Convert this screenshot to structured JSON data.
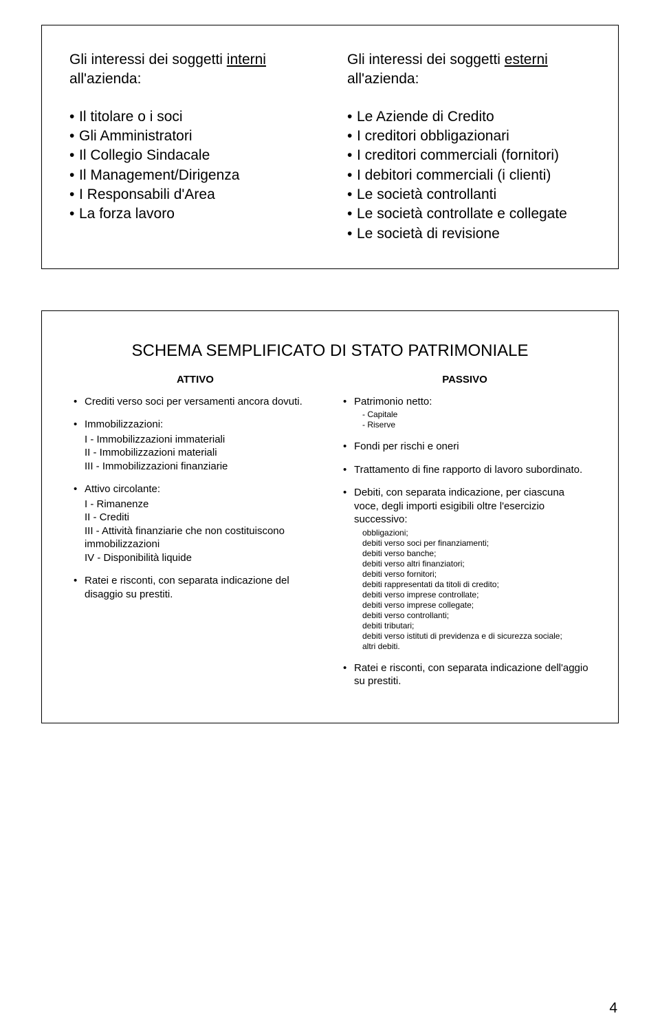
{
  "page_number": "4",
  "slide1": {
    "left": {
      "heading_pre": "Gli interessi dei soggetti ",
      "heading_u": "interni",
      "heading_post": " all'azienda:",
      "items": [
        "Il titolare o i soci",
        "Gli Amministratori",
        "Il Collegio Sindacale",
        "Il Management/Dirigenza",
        "I Responsabili d'Area",
        "La forza lavoro"
      ]
    },
    "right": {
      "heading_pre": "Gli interessi dei soggetti ",
      "heading_u": "esterni",
      "heading_post": " all'azienda:",
      "items": [
        "Le Aziende di Credito",
        "I creditori obbligazionari",
        "I creditori commerciali (fornitori)",
        "I debitori commerciali (i clienti)",
        "Le società controllanti",
        "Le società controllate e collegate",
        "Le società di revisione"
      ]
    }
  },
  "slide2": {
    "title": "SCHEMA SEMPLIFICATO DI STATO PATRIMONIALE",
    "attivo": {
      "header": "ATTIVO",
      "b1": "Crediti verso soci per versamenti ancora dovuti.",
      "b2_head": "Immobilizzazioni:",
      "b2_subs": [
        "I - Immobilizzazioni immateriali",
        "II - Immobilizzazioni materiali",
        "III - Immobilizzazioni finanziarie"
      ],
      "b3_head": "Attivo circolante:",
      "b3_subs": [
        "I - Rimanenze",
        "II - Crediti",
        "III - Attività finanziarie che non costituiscono immobilizzazioni",
        "IV - Disponibilità liquide"
      ],
      "b4": "Ratei e risconti, con separata indicazione del disaggio su prestiti."
    },
    "passivo": {
      "header": "PASSIVO",
      "b1_head": "Patrimonio netto:",
      "b1_subs": [
        "- Capitale",
        "- Riserve"
      ],
      "b2": "Fondi per rischi e oneri",
      "b3": "Trattamento di fine rapporto di lavoro subordinato.",
      "b4_head": "Debiti, con separata indicazione, per ciascuna voce, degli importi esigibili oltre l'esercizio successivo:",
      "b4_subs": [
        "obbligazioni;",
        "debiti verso soci per finanziamenti;",
        "debiti verso banche;",
        "debiti verso altri finanziatori;",
        "debiti verso fornitori;",
        "debiti rappresentati da titoli di credito;",
        "debiti verso imprese controllate;",
        "debiti verso imprese collegate;",
        "debiti verso controllanti;",
        "debiti tributari;",
        "debiti verso istituti di previdenza e di sicurezza sociale;",
        "altri debiti."
      ],
      "b5": "Ratei e risconti, con separata indicazione dell'aggio su prestiti."
    }
  }
}
